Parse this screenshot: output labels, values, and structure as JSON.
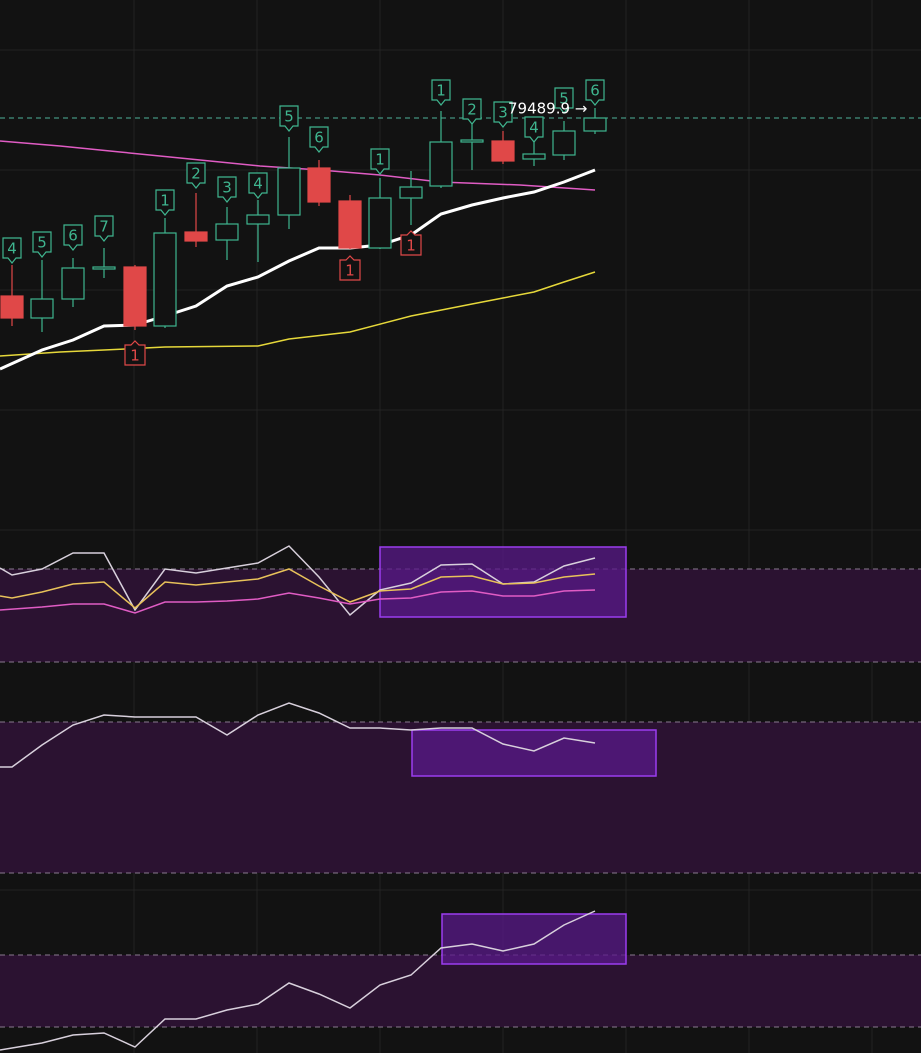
{
  "price_label": "79489.9 →",
  "setup_top": [
    "4",
    "5",
    "6",
    "7",
    "1",
    "2",
    "3",
    "4",
    "5",
    "6",
    "1",
    "1",
    "2",
    "3",
    "4",
    "5",
    "6"
  ],
  "setup_bottom": [
    "1",
    "1",
    "1"
  ]
}
